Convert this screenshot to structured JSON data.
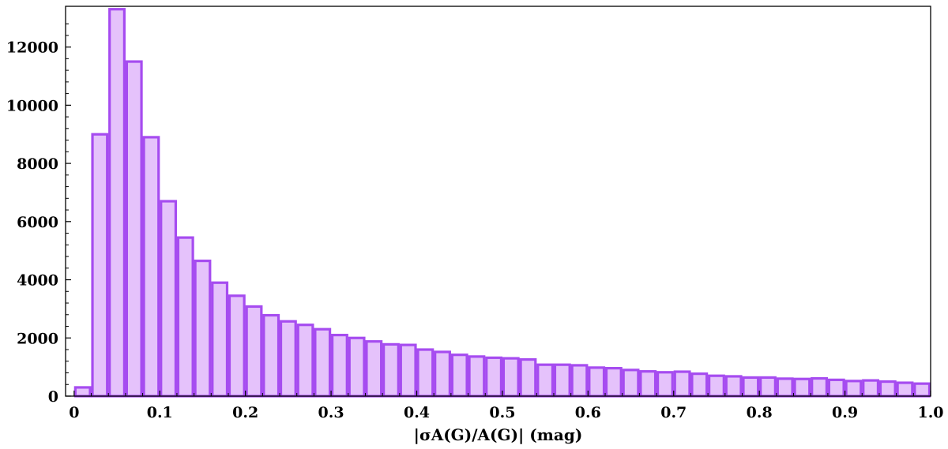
{
  "chart_data": {
    "type": "bar",
    "title": "",
    "xlabel": "|σA(G)/A(G)| (mag)",
    "ylabel": "",
    "xlim": [
      -0.01,
      1.0
    ],
    "ylim": [
      0,
      13400
    ],
    "bin_width": 0.02,
    "bin_starts": [
      0.0,
      0.02,
      0.04,
      0.06,
      0.08,
      0.1,
      0.12,
      0.14,
      0.16,
      0.18,
      0.2,
      0.22,
      0.24,
      0.26,
      0.28,
      0.3,
      0.32,
      0.34,
      0.36,
      0.38,
      0.4,
      0.42,
      0.44,
      0.46,
      0.48,
      0.5,
      0.52,
      0.54,
      0.56,
      0.58,
      0.6,
      0.62,
      0.64,
      0.66,
      0.68,
      0.7,
      0.72,
      0.74,
      0.76,
      0.78,
      0.8,
      0.82,
      0.84,
      0.86,
      0.88,
      0.9,
      0.92,
      0.94,
      0.96,
      0.98
    ],
    "values": [
      300,
      9000,
      13300,
      11500,
      8900,
      6700,
      5450,
      4650,
      3900,
      3450,
      3080,
      2780,
      2570,
      2450,
      2300,
      2100,
      2000,
      1880,
      1780,
      1760,
      1600,
      1520,
      1420,
      1360,
      1320,
      1300,
      1260,
      1080,
      1080,
      1060,
      980,
      960,
      900,
      850,
      820,
      840,
      770,
      700,
      680,
      640,
      640,
      600,
      590,
      610,
      560,
      520,
      540,
      500,
      460,
      430
    ],
    "x_ticks": [
      "0",
      "0.1",
      "0.2",
      "0.3",
      "0.4",
      "0.5",
      "0.6",
      "0.7",
      "0.8",
      "0.9",
      "1.0"
    ],
    "y_ticks": [
      "0",
      "2000",
      "4000",
      "6000",
      "8000",
      "10000",
      "12000"
    ],
    "grid": false,
    "colors": {
      "bar_fill": "#e5c2fb",
      "bar_edge": "#a64cf0"
    }
  }
}
